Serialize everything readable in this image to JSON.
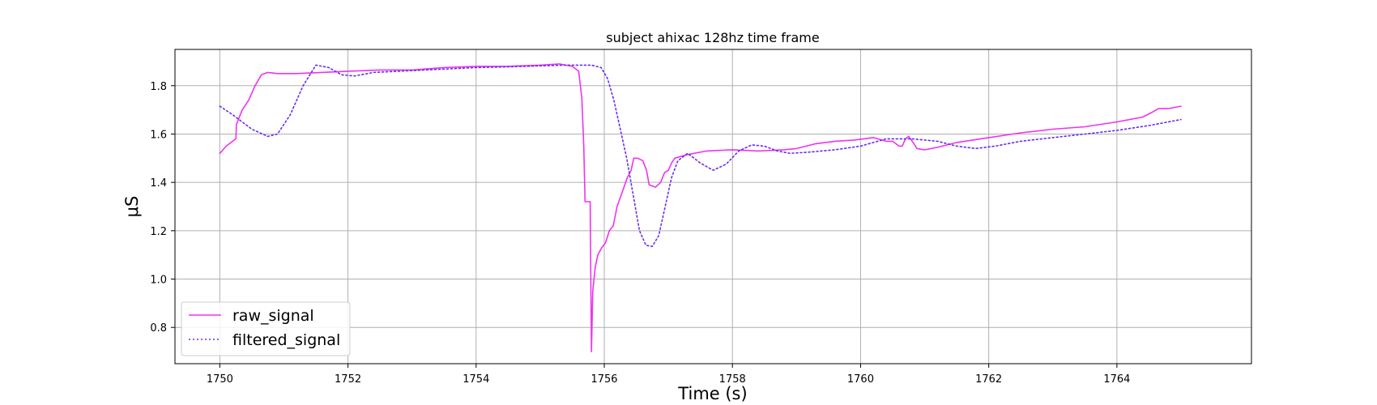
{
  "chart_data": {
    "type": "line",
    "title": "subject ahixac 128hz time frame",
    "xlabel": "Time (s)",
    "ylabel": "μS",
    "xlim": [
      1749.3,
      1766.1
    ],
    "ylim": [
      0.65,
      1.95
    ],
    "xticks": [
      1750,
      1752,
      1754,
      1756,
      1758,
      1760,
      1762,
      1764
    ],
    "yticks": [
      0.8,
      1.0,
      1.2,
      1.4,
      1.6,
      1.8
    ],
    "grid": true,
    "legend_position": "lower-left",
    "series": [
      {
        "name": "raw_signal",
        "color": "#ee33ee",
        "style": "solid",
        "points": [
          [
            1750.0,
            1.52
          ],
          [
            1750.1,
            1.55
          ],
          [
            1750.2,
            1.57
          ],
          [
            1750.25,
            1.58
          ],
          [
            1750.26,
            1.64
          ],
          [
            1750.35,
            1.7
          ],
          [
            1750.45,
            1.74
          ],
          [
            1750.55,
            1.8
          ],
          [
            1750.65,
            1.845
          ],
          [
            1750.75,
            1.855
          ],
          [
            1750.9,
            1.85
          ],
          [
            1751.2,
            1.85
          ],
          [
            1751.6,
            1.855
          ],
          [
            1752.0,
            1.86
          ],
          [
            1752.5,
            1.865
          ],
          [
            1753.0,
            1.865
          ],
          [
            1753.5,
            1.875
          ],
          [
            1754.0,
            1.88
          ],
          [
            1754.5,
            1.88
          ],
          [
            1755.0,
            1.885
          ],
          [
            1755.3,
            1.89
          ],
          [
            1755.5,
            1.88
          ],
          [
            1755.6,
            1.86
          ],
          [
            1755.65,
            1.75
          ],
          [
            1755.68,
            1.55
          ],
          [
            1755.7,
            1.32
          ],
          [
            1755.78,
            1.32
          ],
          [
            1755.79,
            1.0
          ],
          [
            1755.8,
            0.7
          ],
          [
            1755.82,
            0.95
          ],
          [
            1755.86,
            1.05
          ],
          [
            1755.9,
            1.1
          ],
          [
            1755.96,
            1.13
          ],
          [
            1756.02,
            1.15
          ],
          [
            1756.08,
            1.2
          ],
          [
            1756.14,
            1.22
          ],
          [
            1756.2,
            1.3
          ],
          [
            1756.28,
            1.36
          ],
          [
            1756.36,
            1.42
          ],
          [
            1756.42,
            1.45
          ],
          [
            1756.46,
            1.5
          ],
          [
            1756.52,
            1.5
          ],
          [
            1756.6,
            1.49
          ],
          [
            1756.66,
            1.45
          ],
          [
            1756.7,
            1.39
          ],
          [
            1756.8,
            1.38
          ],
          [
            1756.88,
            1.4
          ],
          [
            1756.94,
            1.44
          ],
          [
            1757.0,
            1.45
          ],
          [
            1757.05,
            1.48
          ],
          [
            1757.1,
            1.5
          ],
          [
            1757.3,
            1.515
          ],
          [
            1757.6,
            1.53
          ],
          [
            1758.0,
            1.535
          ],
          [
            1758.4,
            1.53
          ],
          [
            1758.8,
            1.535
          ],
          [
            1759.0,
            1.54
          ],
          [
            1759.3,
            1.56
          ],
          [
            1759.6,
            1.57
          ],
          [
            1759.9,
            1.575
          ],
          [
            1760.2,
            1.585
          ],
          [
            1760.4,
            1.57
          ],
          [
            1760.5,
            1.57
          ],
          [
            1760.6,
            1.55
          ],
          [
            1760.65,
            1.55
          ],
          [
            1760.7,
            1.58
          ],
          [
            1760.75,
            1.59
          ],
          [
            1760.82,
            1.565
          ],
          [
            1760.88,
            1.54
          ],
          [
            1761.0,
            1.535
          ],
          [
            1761.2,
            1.545
          ],
          [
            1761.5,
            1.565
          ],
          [
            1762.0,
            1.585
          ],
          [
            1762.5,
            1.605
          ],
          [
            1763.0,
            1.62
          ],
          [
            1763.5,
            1.63
          ],
          [
            1764.0,
            1.65
          ],
          [
            1764.4,
            1.67
          ],
          [
            1764.55,
            1.69
          ],
          [
            1764.65,
            1.705
          ],
          [
            1764.8,
            1.705
          ],
          [
            1765.0,
            1.715
          ]
        ]
      },
      {
        "name": "filtered_signal",
        "color": "#6a2cf0",
        "style": "dotted",
        "points": [
          [
            1750.0,
            1.715
          ],
          [
            1750.2,
            1.68
          ],
          [
            1750.5,
            1.62
          ],
          [
            1750.75,
            1.59
          ],
          [
            1750.9,
            1.6
          ],
          [
            1751.1,
            1.68
          ],
          [
            1751.3,
            1.8
          ],
          [
            1751.5,
            1.885
          ],
          [
            1751.7,
            1.875
          ],
          [
            1751.9,
            1.845
          ],
          [
            1752.1,
            1.84
          ],
          [
            1752.4,
            1.855
          ],
          [
            1752.8,
            1.86
          ],
          [
            1753.2,
            1.865
          ],
          [
            1753.6,
            1.87
          ],
          [
            1754.0,
            1.875
          ],
          [
            1754.5,
            1.878
          ],
          [
            1755.0,
            1.882
          ],
          [
            1755.4,
            1.885
          ],
          [
            1755.8,
            1.885
          ],
          [
            1755.95,
            1.875
          ],
          [
            1756.05,
            1.83
          ],
          [
            1756.15,
            1.74
          ],
          [
            1756.25,
            1.62
          ],
          [
            1756.35,
            1.5
          ],
          [
            1756.45,
            1.35
          ],
          [
            1756.55,
            1.2
          ],
          [
            1756.65,
            1.14
          ],
          [
            1756.75,
            1.135
          ],
          [
            1756.85,
            1.18
          ],
          [
            1756.95,
            1.3
          ],
          [
            1757.05,
            1.42
          ],
          [
            1757.15,
            1.49
          ],
          [
            1757.3,
            1.52
          ],
          [
            1757.5,
            1.48
          ],
          [
            1757.7,
            1.45
          ],
          [
            1757.9,
            1.475
          ],
          [
            1758.1,
            1.53
          ],
          [
            1758.3,
            1.555
          ],
          [
            1758.5,
            1.55
          ],
          [
            1758.7,
            1.53
          ],
          [
            1758.9,
            1.52
          ],
          [
            1759.2,
            1.525
          ],
          [
            1759.6,
            1.535
          ],
          [
            1760.0,
            1.55
          ],
          [
            1760.4,
            1.58
          ],
          [
            1760.8,
            1.58
          ],
          [
            1761.2,
            1.57
          ],
          [
            1761.5,
            1.55
          ],
          [
            1761.8,
            1.54
          ],
          [
            1762.1,
            1.55
          ],
          [
            1762.5,
            1.57
          ],
          [
            1763.0,
            1.585
          ],
          [
            1763.5,
            1.6
          ],
          [
            1764.0,
            1.615
          ],
          [
            1764.5,
            1.635
          ],
          [
            1765.0,
            1.66
          ]
        ]
      }
    ]
  }
}
